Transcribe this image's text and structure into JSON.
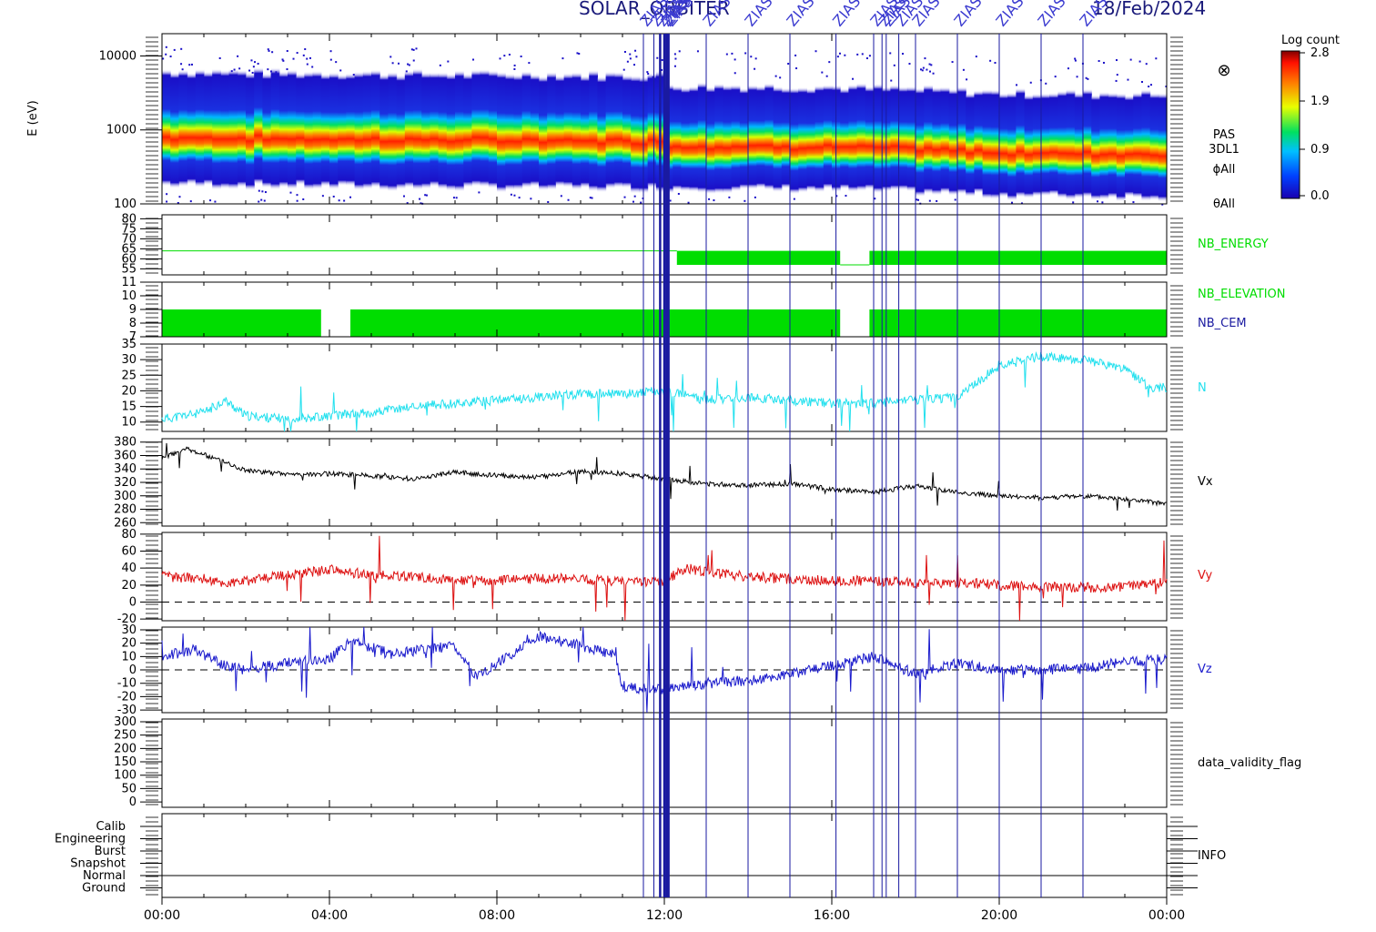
{
  "header": {
    "title": "SOLAR_ORBITER",
    "date": "18/Feb/2024"
  },
  "events": {
    "label": "ZIAS",
    "times": [
      11.5,
      11.75,
      11.9,
      12.0,
      12.05,
      12.1,
      13.0,
      14.0,
      15.0,
      16.1,
      17.0,
      17.2,
      17.3,
      17.6,
      18.0,
      19.0,
      20.0,
      21.0,
      22.0
    ]
  },
  "colorbar": {
    "title": "Log count",
    "ticks": [
      "2.8",
      "1.9",
      "0.9",
      "0.0"
    ],
    "range": [
      0.0,
      2.8
    ]
  },
  "side_labels": {
    "cross_symbol": "⊗",
    "pas": "PAS",
    "dl1": "3DL1",
    "phi": "ϕAll",
    "theta": "θAll"
  },
  "chart_data": [
    {
      "type": "heatmap",
      "name": "energy-spectrogram",
      "ylabel": "E (eV)",
      "yscale": "log",
      "ylim": [
        100,
        20000
      ],
      "yticks": [
        "10000",
        "1000",
        "100"
      ],
      "colorscale": "Log count",
      "x": [
        0,
        24
      ],
      "peak_energy_eV": {
        "x": [
          0,
          4,
          8,
          12,
          16,
          18,
          20,
          24
        ],
        "y": [
          700,
          660,
          640,
          620,
          600,
          560,
          500,
          480
        ]
      }
    },
    {
      "type": "line",
      "name": "NB_ENERGY",
      "series_label": "NB_ENERGY",
      "ylim": [
        52,
        82
      ],
      "yticks": [
        "80",
        "75",
        "70",
        "65",
        "60",
        "55"
      ],
      "series": [
        {
          "name": "NB_ENERGY",
          "color": "#00dd00",
          "x": [
            0,
            12.3,
            12.3,
            16.2,
            16.2,
            16.9,
            16.9,
            24
          ],
          "y": [
            64,
            64,
            60,
            60,
            57,
            57,
            60,
            60
          ]
        }
      ]
    },
    {
      "type": "line",
      "name": "NB_ELEVATION",
      "series_label": "NB_ELEVATION",
      "series_label_2": "NB_CEM",
      "ylim": [
        7,
        11
      ],
      "yticks": [
        "11",
        "10",
        "9",
        "8",
        "7"
      ],
      "series": [
        {
          "name": "NB_ELEVATION",
          "color": "#00dd00",
          "gaps": [
            [
              3.8,
              4.5
            ],
            [
              16.2,
              16.9
            ]
          ]
        },
        {
          "name": "NB_CEM",
          "color": "#1a1aa0"
        }
      ]
    },
    {
      "type": "line",
      "name": "N",
      "series_label": "N",
      "ylim": [
        7,
        35
      ],
      "yticks": [
        "35",
        "30",
        "25",
        "20",
        "15",
        "10"
      ],
      "series": [
        {
          "name": "N",
          "color": "#22e0ee",
          "x": [
            0,
            1,
            1.5,
            2,
            3,
            4,
            5,
            6,
            7,
            8,
            9,
            10,
            11,
            12,
            13,
            14,
            15,
            16,
            17,
            18,
            19,
            20,
            21,
            22,
            23,
            23.6,
            24
          ],
          "y": [
            11,
            13,
            17,
            12,
            11,
            12,
            13,
            15,
            16,
            17,
            18,
            19,
            19,
            20,
            17,
            18,
            17,
            16,
            16,
            17,
            18,
            28,
            31,
            30,
            27,
            21,
            21
          ]
        }
      ]
    },
    {
      "type": "line",
      "name": "Vx",
      "series_label": "Vx",
      "ylim": [
        255,
        385
      ],
      "yticks": [
        "380",
        "360",
        "340",
        "320",
        "300",
        "280",
        "260"
      ],
      "series": [
        {
          "name": "Vx",
          "color": "#000000",
          "x": [
            0,
            0.6,
            1.5,
            2,
            3,
            4,
            5,
            6,
            7,
            8,
            9,
            10,
            11,
            12,
            13,
            14,
            15,
            16,
            17,
            18,
            19,
            20,
            21,
            22,
            23,
            24
          ],
          "y": [
            356,
            370,
            350,
            338,
            332,
            333,
            330,
            325,
            335,
            330,
            328,
            336,
            333,
            325,
            318,
            316,
            318,
            310,
            305,
            315,
            305,
            300,
            297,
            300,
            295,
            288
          ]
        }
      ]
    },
    {
      "type": "line",
      "name": "Vy",
      "series_label": "Vy",
      "ylim": [
        -22,
        82
      ],
      "yticks": [
        "80",
        "60",
        "40",
        "20",
        "0",
        "-20"
      ],
      "zero_line": 0,
      "series": [
        {
          "name": "Vy",
          "color": "#dd1111",
          "x": [
            0,
            1,
            1.5,
            2,
            3,
            4,
            5,
            6,
            7,
            8,
            9,
            10,
            11,
            12,
            12.5,
            13,
            14,
            15,
            16,
            17,
            18,
            19,
            20,
            21,
            22,
            23,
            24
          ],
          "y": [
            30,
            28,
            22,
            25,
            32,
            38,
            32,
            30,
            26,
            25,
            28,
            27,
            24,
            25,
            40,
            35,
            30,
            27,
            25,
            25,
            22,
            23,
            20,
            18,
            17,
            18,
            24
          ]
        }
      ]
    },
    {
      "type": "line",
      "name": "Vz",
      "series_label": "Vz",
      "ylim": [
        -32,
        32
      ],
      "yticks": [
        "30",
        "20",
        "10",
        "0",
        "-10",
        "-20",
        "-30"
      ],
      "zero_line": 0,
      "series": [
        {
          "name": "Vz",
          "color": "#1a1acc",
          "x": [
            0,
            0.8,
            1.5,
            2,
            3,
            4,
            4.5,
            5.5,
            7,
            7.5,
            8,
            9,
            10,
            10.8,
            11,
            11.5,
            12,
            13,
            14,
            15,
            16,
            17,
            18,
            19,
            20,
            21,
            22,
            23,
            24
          ],
          "y": [
            10,
            15,
            3,
            0,
            5,
            8,
            22,
            12,
            18,
            -5,
            5,
            25,
            18,
            12,
            -12,
            -14,
            -15,
            -10,
            -8,
            -3,
            3,
            10,
            -3,
            5,
            0,
            0,
            1,
            6,
            8
          ]
        }
      ]
    },
    {
      "type": "line",
      "name": "data_validity_flag",
      "series_label": "data_validity_flag",
      "ylim": [
        -20,
        310
      ],
      "yticks": [
        "300",
        "250",
        "200",
        "150",
        "100",
        "50",
        "0"
      ],
      "series": []
    },
    {
      "type": "line",
      "name": "INFO",
      "series_label": "INFO",
      "categories": [
        "Calib",
        "Engineering",
        "Burst",
        "Snapshot",
        "Normal",
        "Ground"
      ],
      "series": [
        {
          "name": "INFO",
          "color": "#000000",
          "level": "Normal"
        }
      ]
    }
  ],
  "x_axis": {
    "ticks": [
      "00:00",
      "04:00",
      "08:00",
      "12:00",
      "16:00",
      "20:00",
      "00:00"
    ],
    "range_hours": [
      0,
      24
    ]
  }
}
